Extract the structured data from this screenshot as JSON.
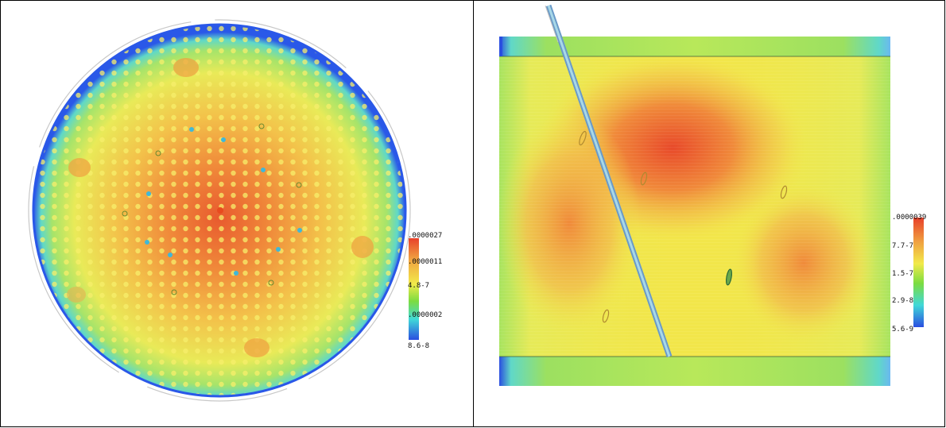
{
  "panels": [
    {
      "id": "circular-map",
      "legend": {
        "labels": [
          ".0000027",
          ".0000011",
          "4.8-7",
          ".0000002",
          "8.6-8"
        ]
      }
    },
    {
      "id": "rectangular-map",
      "legend": {
        "labels": [
          ".0000039",
          "7.7-7",
          "1.5-7",
          "2.9-8",
          "5.6-9"
        ]
      }
    }
  ],
  "colors": {
    "high": "#e8502a",
    "mid_high": "#f0a040",
    "mid": "#f2e64a",
    "mid_low": "#9ce060",
    "low": "#60d8c0",
    "lowest": "#2a4ee0"
  }
}
